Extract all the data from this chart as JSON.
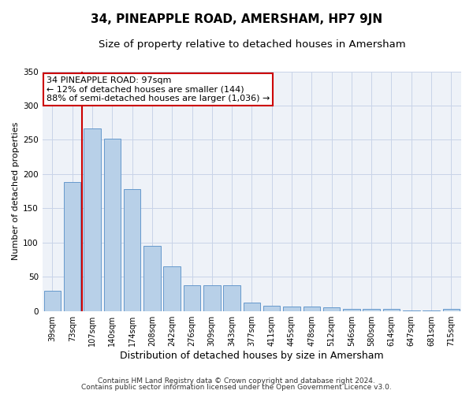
{
  "title": "34, PINEAPPLE ROAD, AMERSHAM, HP7 9JN",
  "subtitle": "Size of property relative to detached houses in Amersham",
  "xlabel": "Distribution of detached houses by size in Amersham",
  "ylabel": "Number of detached properties",
  "categories": [
    "39sqm",
    "73sqm",
    "107sqm",
    "140sqm",
    "174sqm",
    "208sqm",
    "242sqm",
    "276sqm",
    "309sqm",
    "343sqm",
    "377sqm",
    "411sqm",
    "445sqm",
    "478sqm",
    "512sqm",
    "546sqm",
    "580sqm",
    "614sqm",
    "647sqm",
    "681sqm",
    "715sqm"
  ],
  "values": [
    30,
    188,
    267,
    252,
    178,
    95,
    65,
    38,
    38,
    38,
    12,
    8,
    7,
    7,
    5,
    3,
    3,
    3,
    1,
    1,
    3
  ],
  "bar_color": "#b8d0e8",
  "bar_edge_color": "#6699cc",
  "background_color": "#eef2f8",
  "grid_color": "#c8d4e8",
  "annotation_text": "34 PINEAPPLE ROAD: 97sqm\n← 12% of detached houses are smaller (144)\n88% of semi-detached houses are larger (1,036) →",
  "vline_color": "#cc0000",
  "vline_x": 1.5,
  "ylim": [
    0,
    350
  ],
  "footnote_line1": "Contains HM Land Registry data © Crown copyright and database right 2024.",
  "footnote_line2": "Contains public sector information licensed under the Open Government Licence v3.0.",
  "title_fontsize": 11,
  "subtitle_fontsize": 9.5,
  "xlabel_fontsize": 9,
  "ylabel_fontsize": 8,
  "tick_fontsize": 7,
  "annotation_fontsize": 8,
  "footnote_fontsize": 6.5
}
